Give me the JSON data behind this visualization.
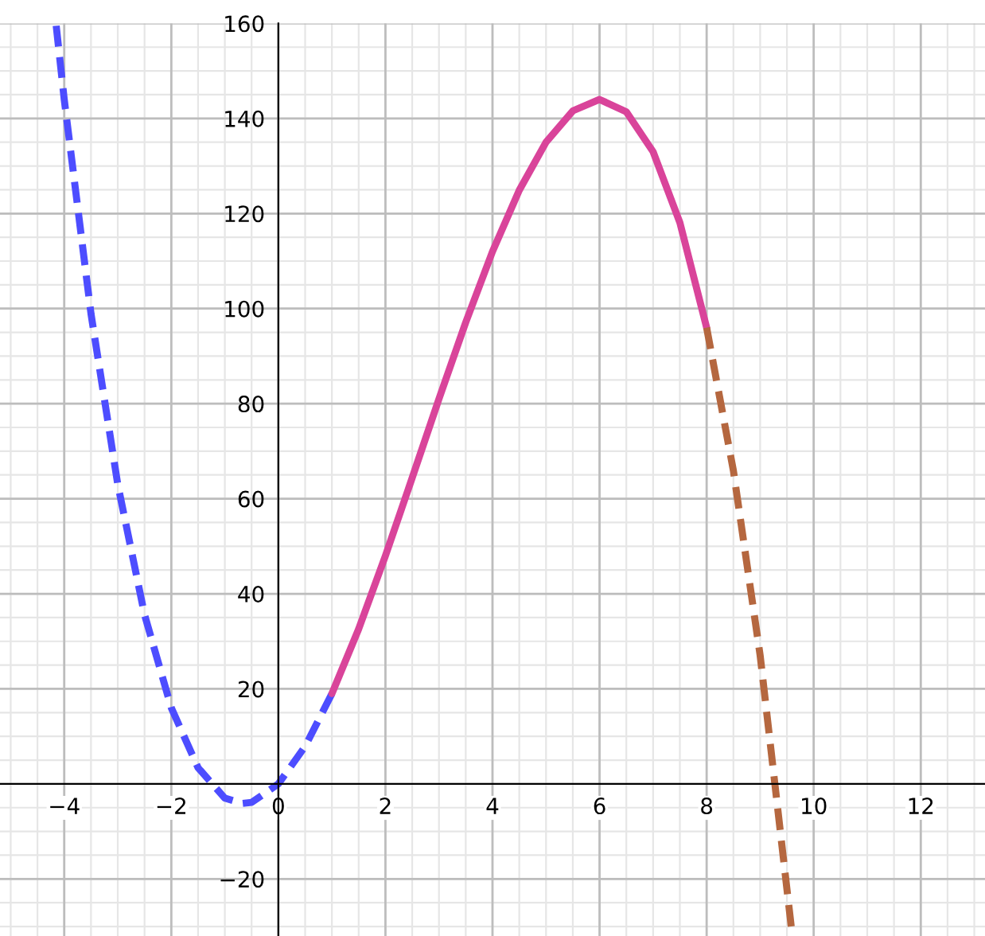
{
  "chart_data": {
    "type": "line",
    "series": [
      {
        "color": "#4d4dff",
        "line_style": "dashed",
        "x": [
          -4.15,
          -4,
          -3.5,
          -3,
          -2.5,
          -2,
          -1.5,
          -1,
          -0.67,
          -0.5,
          0,
          0.5,
          1
        ],
        "values": [
          159.5,
          144,
          98.9,
          63,
          35.6,
          16,
          3.4,
          -3,
          -4.1,
          -3.9,
          0,
          7.9,
          19
        ]
      },
      {
        "color": "#d9449a",
        "line_style": "solid",
        "x": [
          1,
          1.5,
          2,
          2.5,
          3,
          3.5,
          4,
          4.5,
          5,
          5.5,
          6,
          6.5,
          7,
          7.5,
          8
        ],
        "values": [
          19,
          32.6,
          48,
          64.4,
          81,
          97.1,
          112,
          124.9,
          135,
          141.6,
          144,
          141.4,
          133,
          118.1,
          96
        ]
      },
      {
        "color": "#b5673f",
        "line_style": "dashed",
        "x": [
          8,
          8.5,
          9,
          9.58
        ],
        "values": [
          96,
          65.9,
          27,
          -30
        ]
      }
    ],
    "xlim": [
      -5.2,
      13.2
    ],
    "ylim": [
      -32,
      160
    ],
    "xticks": [
      -4,
      -2,
      0,
      2,
      4,
      6,
      8,
      10,
      12
    ],
    "yticks": [
      -20,
      20,
      40,
      60,
      80,
      100,
      120,
      140,
      160
    ],
    "grid": true,
    "legend": false,
    "marker": "none"
  }
}
